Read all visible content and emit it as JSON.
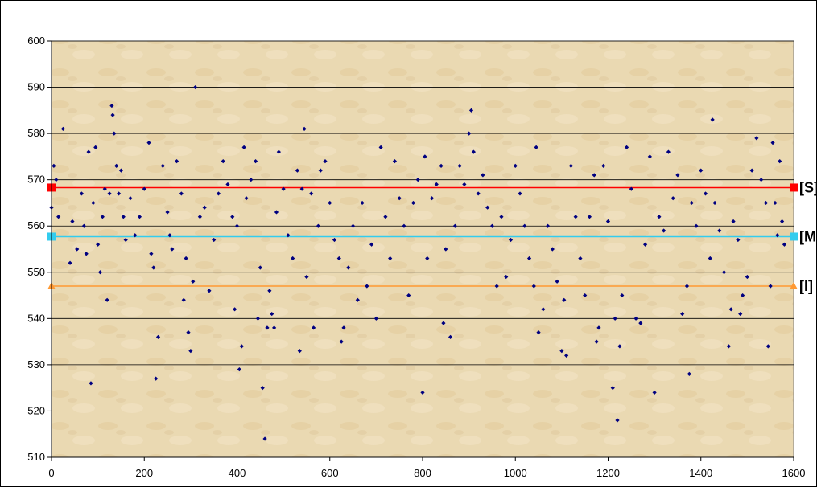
{
  "chart_data": {
    "type": "scatter",
    "title": "",
    "xlabel": "",
    "ylabel": "",
    "xlim": [
      0,
      1600
    ],
    "ylim": [
      510,
      600
    ],
    "x_ticks": [
      0,
      200,
      400,
      600,
      800,
      1000,
      1200,
      1400,
      1600
    ],
    "y_ticks": [
      510,
      520,
      530,
      540,
      550,
      560,
      570,
      580,
      590,
      600
    ],
    "grid": "horizontal",
    "points_color": "#000080",
    "points": [
      [
        0,
        564
      ],
      [
        5,
        573
      ],
      [
        10,
        570
      ],
      [
        15,
        562
      ],
      [
        25,
        581
      ],
      [
        40,
        552
      ],
      [
        45,
        561
      ],
      [
        55,
        555
      ],
      [
        65,
        567
      ],
      [
        70,
        560
      ],
      [
        75,
        554
      ],
      [
        80,
        576
      ],
      [
        85,
        526
      ],
      [
        90,
        565
      ],
      [
        95,
        577
      ],
      [
        100,
        556
      ],
      [
        105,
        550
      ],
      [
        110,
        562
      ],
      [
        115,
        568
      ],
      [
        120,
        544
      ],
      [
        125,
        567
      ],
      [
        130,
        586
      ],
      [
        132,
        584
      ],
      [
        135,
        580
      ],
      [
        140,
        573
      ],
      [
        145,
        567
      ],
      [
        150,
        572
      ],
      [
        155,
        562
      ],
      [
        160,
        557
      ],
      [
        170,
        566
      ],
      [
        180,
        558
      ],
      [
        190,
        562
      ],
      [
        200,
        568
      ],
      [
        210,
        578
      ],
      [
        215,
        554
      ],
      [
        220,
        551
      ],
      [
        225,
        527
      ],
      [
        230,
        536
      ],
      [
        240,
        573
      ],
      [
        250,
        563
      ],
      [
        255,
        558
      ],
      [
        260,
        555
      ],
      [
        270,
        574
      ],
      [
        280,
        567
      ],
      [
        285,
        544
      ],
      [
        290,
        553
      ],
      [
        295,
        537
      ],
      [
        300,
        533
      ],
      [
        305,
        548
      ],
      [
        310,
        590
      ],
      [
        320,
        562
      ],
      [
        330,
        564
      ],
      [
        340,
        546
      ],
      [
        350,
        557
      ],
      [
        360,
        567
      ],
      [
        370,
        574
      ],
      [
        380,
        569
      ],
      [
        390,
        562
      ],
      [
        395,
        542
      ],
      [
        400,
        560
      ],
      [
        405,
        529
      ],
      [
        410,
        534
      ],
      [
        415,
        577
      ],
      [
        420,
        566
      ],
      [
        430,
        570
      ],
      [
        440,
        574
      ],
      [
        445,
        540
      ],
      [
        450,
        551
      ],
      [
        455,
        525
      ],
      [
        460,
        514
      ],
      [
        465,
        538
      ],
      [
        470,
        546
      ],
      [
        475,
        541
      ],
      [
        480,
        538
      ],
      [
        485,
        563
      ],
      [
        490,
        576
      ],
      [
        500,
        568
      ],
      [
        510,
        558
      ],
      [
        520,
        553
      ],
      [
        530,
        572
      ],
      [
        535,
        533
      ],
      [
        540,
        568
      ],
      [
        545,
        581
      ],
      [
        550,
        549
      ],
      [
        560,
        567
      ],
      [
        565,
        538
      ],
      [
        575,
        560
      ],
      [
        580,
        572
      ],
      [
        590,
        574
      ],
      [
        600,
        565
      ],
      [
        610,
        557
      ],
      [
        620,
        553
      ],
      [
        625,
        535
      ],
      [
        630,
        538
      ],
      [
        640,
        551
      ],
      [
        650,
        560
      ],
      [
        660,
        544
      ],
      [
        670,
        565
      ],
      [
        680,
        547
      ],
      [
        690,
        556
      ],
      [
        700,
        540
      ],
      [
        710,
        577
      ],
      [
        720,
        562
      ],
      [
        730,
        553
      ],
      [
        740,
        574
      ],
      [
        750,
        566
      ],
      [
        760,
        560
      ],
      [
        770,
        545
      ],
      [
        780,
        565
      ],
      [
        790,
        570
      ],
      [
        800,
        524
      ],
      [
        805,
        575
      ],
      [
        810,
        553
      ],
      [
        820,
        566
      ],
      [
        830,
        569
      ],
      [
        840,
        573
      ],
      [
        845,
        539
      ],
      [
        850,
        555
      ],
      [
        860,
        536
      ],
      [
        870,
        560
      ],
      [
        880,
        573
      ],
      [
        890,
        569
      ],
      [
        900,
        580
      ],
      [
        905,
        585
      ],
      [
        910,
        576
      ],
      [
        920,
        567
      ],
      [
        930,
        571
      ],
      [
        940,
        564
      ],
      [
        950,
        560
      ],
      [
        960,
        547
      ],
      [
        970,
        562
      ],
      [
        980,
        549
      ],
      [
        990,
        557
      ],
      [
        1000,
        573
      ],
      [
        1010,
        567
      ],
      [
        1020,
        560
      ],
      [
        1030,
        553
      ],
      [
        1040,
        547
      ],
      [
        1045,
        577
      ],
      [
        1050,
        537
      ],
      [
        1060,
        542
      ],
      [
        1070,
        560
      ],
      [
        1080,
        555
      ],
      [
        1090,
        548
      ],
      [
        1100,
        533
      ],
      [
        1105,
        544
      ],
      [
        1110,
        532
      ],
      [
        1120,
        573
      ],
      [
        1130,
        562
      ],
      [
        1140,
        553
      ],
      [
        1150,
        545
      ],
      [
        1160,
        562
      ],
      [
        1170,
        571
      ],
      [
        1175,
        535
      ],
      [
        1180,
        538
      ],
      [
        1190,
        573
      ],
      [
        1200,
        561
      ],
      [
        1210,
        525
      ],
      [
        1215,
        540
      ],
      [
        1220,
        518
      ],
      [
        1225,
        534
      ],
      [
        1230,
        545
      ],
      [
        1240,
        577
      ],
      [
        1250,
        568
      ],
      [
        1260,
        540
      ],
      [
        1270,
        539
      ],
      [
        1280,
        556
      ],
      [
        1290,
        575
      ],
      [
        1300,
        524
      ],
      [
        1310,
        562
      ],
      [
        1320,
        559
      ],
      [
        1330,
        576
      ],
      [
        1340,
        566
      ],
      [
        1350,
        571
      ],
      [
        1360,
        541
      ],
      [
        1370,
        547
      ],
      [
        1375,
        528
      ],
      [
        1380,
        565
      ],
      [
        1390,
        560
      ],
      [
        1400,
        572
      ],
      [
        1410,
        567
      ],
      [
        1420,
        553
      ],
      [
        1425,
        583
      ],
      [
        1430,
        565
      ],
      [
        1440,
        559
      ],
      [
        1450,
        550
      ],
      [
        1460,
        534
      ],
      [
        1465,
        542
      ],
      [
        1470,
        561
      ],
      [
        1480,
        557
      ],
      [
        1485,
        541
      ],
      [
        1490,
        545
      ],
      [
        1500,
        549
      ],
      [
        1510,
        572
      ],
      [
        1520,
        579
      ],
      [
        1530,
        570
      ],
      [
        1540,
        565
      ],
      [
        1545,
        534
      ],
      [
        1550,
        547
      ],
      [
        1555,
        578
      ],
      [
        1560,
        565
      ],
      [
        1565,
        558
      ],
      [
        1570,
        574
      ],
      [
        1575,
        561
      ],
      [
        1580,
        556
      ]
    ],
    "lines": [
      {
        "label": "[S]",
        "value": 568.3,
        "color": "#ff0000",
        "marker": "square"
      },
      {
        "label": "[M]",
        "value": 557.7,
        "color": "#33ccee",
        "marker": "square"
      },
      {
        "label": "[I]",
        "value": 547.0,
        "color": "#ff9933",
        "marker": "triangle"
      }
    ]
  }
}
